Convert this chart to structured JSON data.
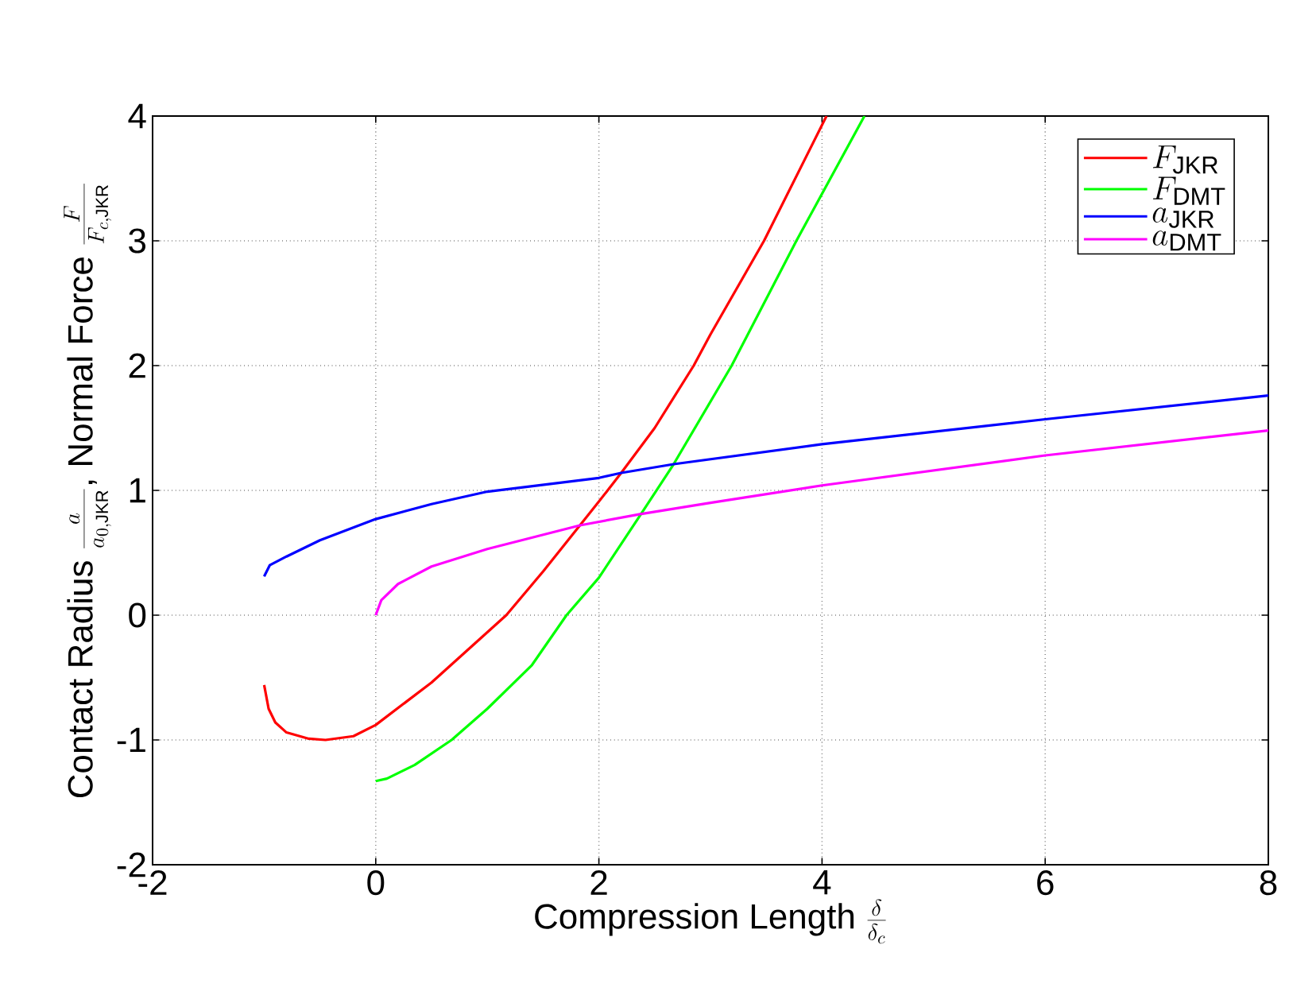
{
  "chart_data": {
    "type": "line",
    "xlabel": "\\mbox{Compression Length }\\frac{\\delta}{\\delta_c}",
    "ylabel": "\\mbox{Contact Radius }\\frac{a}{a_{0,\\mathrm{JKR}}}\\mbox{, Normal Force }\\frac{F}{F_{c,\\mathrm{JKR}}}",
    "xlim": [
      -2,
      8
    ],
    "ylim": [
      -2,
      4
    ],
    "xticks": [
      -2,
      0,
      2,
      4,
      6,
      8
    ],
    "yticks": [
      -2,
      -1,
      0,
      1,
      2,
      3,
      4
    ],
    "grid": true,
    "legend": "top right",
    "series": [
      {
        "name": "F_{\\mathrm{JKR}}",
        "color": "#ff0000",
        "x": [
          -1,
          -0.96,
          -0.9,
          -0.8,
          -0.6,
          -0.45,
          -0.2,
          0,
          0.5,
          1.17,
          1.5,
          1.83,
          2,
          2.2,
          2.5,
          2.85,
          3,
          3.48,
          4.04
        ],
        "values": [
          -0.56,
          -0.75,
          -0.86,
          -0.94,
          -0.99,
          -1.0,
          -0.97,
          -0.88,
          -0.54,
          0,
          0.35,
          0.72,
          0.91,
          1.14,
          1.5,
          2,
          2.25,
          3,
          4
        ]
      },
      {
        "name": "F_{\\mathrm{DMT}}",
        "color": "#00ff00",
        "x": [
          0,
          0.1,
          0.35,
          0.68,
          1.0,
          1.4,
          1.71,
          2.0,
          2.37,
          2.67,
          3.19,
          3.77,
          4.38
        ],
        "values": [
          -1.33,
          -1.31,
          -1.2,
          -1,
          -0.75,
          -0.4,
          0,
          0.3,
          0.8,
          1.21,
          2,
          3,
          4
        ]
      },
      {
        "name": "a_{\\mathrm{JKR}}",
        "color": "#0000ff",
        "x": [
          -1,
          -0.95,
          -0.8,
          -0.5,
          0,
          0.5,
          1,
          2,
          2.2,
          2.67,
          4,
          6,
          8
        ],
        "values": [
          0.31,
          0.4,
          0.47,
          0.6,
          0.77,
          0.89,
          0.99,
          1.1,
          1.14,
          1.21,
          1.37,
          1.57,
          1.76
        ]
      },
      {
        "name": "a_{\\mathrm{DMT}}",
        "color": "#ff00ff",
        "x": [
          0,
          0.05,
          0.2,
          0.5,
          1,
          1.83,
          2.37,
          3,
          4,
          6,
          8
        ],
        "values": [
          0,
          0.12,
          0.25,
          0.39,
          0.53,
          0.72,
          0.81,
          0.9,
          1.04,
          1.28,
          1.48
        ]
      }
    ]
  }
}
